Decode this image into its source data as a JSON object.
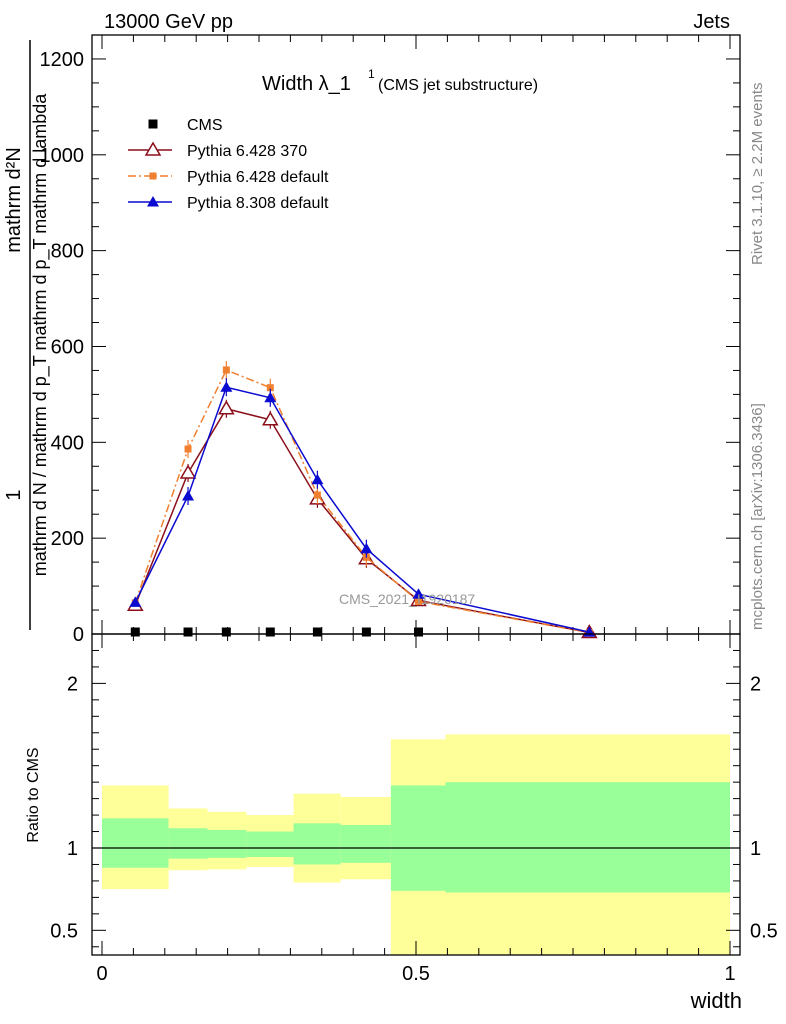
{
  "header": {
    "left": "13000 GeV pp",
    "right": "Jets"
  },
  "side_labels": {
    "rivet": "Rivet 3.1.10, ≥ 2.2M events",
    "mcplots": "mcplots.cern.ch [arXiv:1306.3436]"
  },
  "watermark": "CMS_2021_I1920187",
  "chart_data": [
    {
      "type": "line",
      "title": "Width λ_1",
      "title_sup": "1",
      "subtitle": "(CMS jet substructure)",
      "ylabel_num": "1",
      "ylabel_den": "mathrm d N / mathrm d p_T mathrm d p_T mathrm d lambda",
      "ylabel_num_line1": "mathrm d²N",
      "xlim": [
        0,
        1
      ],
      "ylim": [
        0,
        1250
      ],
      "yticks": [
        0,
        200,
        400,
        600,
        800,
        1000,
        1200
      ],
      "ytick_labels": [
        "0",
        "200",
        "400",
        "600",
        "800",
        "1000",
        "1200"
      ],
      "legend_position": "top-left",
      "series": [
        {
          "name": "CMS",
          "color": "#000000",
          "marker": "square",
          "x": [
            0.053,
            0.137,
            0.198,
            0.268,
            0.343,
            0.421,
            0.504
          ],
          "y": [
            0,
            0,
            0,
            0,
            0,
            0,
            0
          ]
        },
        {
          "name": "Pythia 6.428 370",
          "color": "#8b0f1a",
          "marker": "open-triangle",
          "dash": "solid",
          "x": [
            0.053,
            0.137,
            0.198,
            0.268,
            0.343,
            0.421,
            0.504,
            0.776
          ],
          "y": [
            60,
            336,
            470,
            447,
            282,
            157,
            70,
            3
          ]
        },
        {
          "name": "Pythia 6.428 default",
          "color": "#f08030",
          "marker": "small-square",
          "dash": "dashdot",
          "x": [
            0.053,
            0.137,
            0.198,
            0.268,
            0.343,
            0.421,
            0.504,
            0.776
          ],
          "y": [
            65,
            386,
            551,
            514,
            290,
            160,
            68,
            3
          ]
        },
        {
          "name": "Pythia 8.308 default",
          "color": "#0a0ad0",
          "marker": "filled-triangle",
          "dash": "solid",
          "x": [
            0.053,
            0.137,
            0.198,
            0.268,
            0.343,
            0.421,
            0.504,
            0.776
          ],
          "y": [
            66,
            288,
            515,
            493,
            322,
            178,
            83,
            4
          ]
        }
      ]
    },
    {
      "type": "area",
      "ylabel": "Ratio to CMS",
      "xlabel": "width",
      "xlim": [
        0,
        1
      ],
      "ylim": [
        0.35,
        2.3
      ],
      "yticks": [
        0.5,
        1,
        2
      ],
      "ytick_labels": [
        "0.5",
        "1",
        "2"
      ],
      "xticks": [
        0,
        0.5,
        1
      ],
      "xtick_labels": [
        "0",
        "0.5",
        "1"
      ],
      "bands": {
        "edges": [
          0.0,
          0.106,
          0.168,
          0.23,
          0.305,
          0.38,
          0.46,
          0.547,
          1.0
        ],
        "yellow_lo": [
          0.75,
          0.865,
          0.87,
          0.885,
          0.79,
          0.81,
          0.35,
          0.35
        ],
        "yellow_hi": [
          1.38,
          1.24,
          1.22,
          1.2,
          1.33,
          1.31,
          1.66,
          1.69
        ],
        "green_lo": [
          0.88,
          0.935,
          0.94,
          0.945,
          0.9,
          0.91,
          0.74,
          0.73
        ],
        "green_hi": [
          1.18,
          1.12,
          1.11,
          1.1,
          1.15,
          1.14,
          1.38,
          1.4
        ]
      },
      "colors": {
        "yellow": "#ffff99",
        "green": "#99ff99"
      }
    }
  ]
}
